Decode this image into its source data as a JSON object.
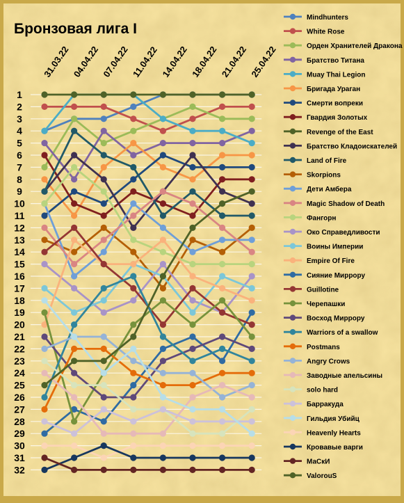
{
  "chart_data": {
    "type": "line",
    "title": "Бронзовая лига I",
    "categories": [
      "31.03.22",
      "04.04.22",
      "07.04.22",
      "11.04.22",
      "14.04.22",
      "18.04.22",
      "21.04.22",
      "25.04.22"
    ],
    "y_ticks": [
      1,
      2,
      3,
      4,
      5,
      6,
      7,
      8,
      9,
      10,
      11,
      12,
      13,
      14,
      15,
      16,
      17,
      18,
      19,
      20,
      21,
      22,
      23,
      24,
      25,
      26,
      27,
      28,
      29,
      30,
      31,
      32
    ],
    "y_axis": "rank, 1 at top",
    "ylim": [
      1,
      32
    ],
    "grid": true,
    "legend_position": "right",
    "series": [
      {
        "name": "Mindhunters",
        "color": "#4f81bd",
        "values": [
          4,
          3,
          3,
          2,
          1,
          1,
          1,
          1
        ]
      },
      {
        "name": "White Rose",
        "color": "#c0504d",
        "values": [
          2,
          2,
          2,
          3,
          4,
          3,
          2,
          2
        ]
      },
      {
        "name": "Орден Хранителей Дракона",
        "color": "#9bbb59",
        "values": [
          7,
          3,
          5,
          4,
          3,
          2,
          3,
          3
        ]
      },
      {
        "name": "Братство Титана",
        "color": "#8064a2",
        "values": [
          5,
          8,
          4,
          6,
          5,
          5,
          5,
          4
        ]
      },
      {
        "name": "Muay Thai Legion",
        "color": "#4bacc6",
        "values": [
          4,
          1,
          1,
          1,
          3,
          4,
          4,
          5
        ]
      },
      {
        "name": "Бригада Ураган",
        "color": "#f79646",
        "values": [
          8,
          11,
          7,
          5,
          7,
          8,
          6,
          6
        ]
      },
      {
        "name": "Смерти вопреки",
        "color": "#1f497d",
        "values": [
          11,
          9,
          10,
          8,
          6,
          7,
          7,
          7
        ]
      },
      {
        "name": "Гвардия Золотых",
        "color": "#7f1f1f",
        "values": [
          6,
          10,
          11,
          9,
          10,
          11,
          8,
          8
        ]
      },
      {
        "name": "Revenge of the East",
        "color": "#4f6228",
        "values": [
          1,
          1,
          1,
          1,
          1,
          1,
          1,
          1
        ]
      },
      {
        "name": "Братство Кладоискателей",
        "color": "#3f3151",
        "values": [
          9,
          6,
          8,
          12,
          9,
          6,
          9,
          10
        ]
      },
      {
        "name": "Land of Fire",
        "color": "#215968",
        "values": [
          9,
          4,
          6,
          7,
          11,
          9,
          11,
          11
        ]
      },
      {
        "name": "Skorpions",
        "color": "#b45f06",
        "values": [
          13,
          14,
          12,
          14,
          17,
          13,
          14,
          12
        ]
      },
      {
        "name": "Дети Амбера",
        "color": "#6f9fd8",
        "values": [
          10,
          16,
          14,
          10,
          12,
          14,
          13,
          13
        ]
      },
      {
        "name": "Magic Shadow of Death",
        "color": "#d98583",
        "values": [
          12,
          15,
          13,
          11,
          9,
          10,
          12,
          14
        ]
      },
      {
        "name": "Фангорн",
        "color": "#b8d47e",
        "values": [
          10,
          7,
          9,
          13,
          14,
          15,
          15,
          15
        ]
      },
      {
        "name": "Око Справедливости",
        "color": "#a893c8",
        "values": [
          15,
          17,
          19,
          18,
          15,
          18,
          19,
          16
        ]
      },
      {
        "name": "Воины Империи",
        "color": "#7cc7d9",
        "values": [
          17,
          19,
          18,
          15,
          16,
          19,
          16,
          17
        ]
      },
      {
        "name": "Empire Of Fire",
        "color": "#fab27c",
        "values": [
          20,
          13,
          15,
          15,
          13,
          16,
          17,
          18
        ]
      },
      {
        "name": "Сияние Миррору",
        "color": "#2f6ba3",
        "values": [
          29,
          27,
          28,
          25,
          22,
          21,
          23,
          19
        ]
      },
      {
        "name": "Guillotine",
        "color": "#943634",
        "values": [
          14,
          12,
          15,
          17,
          20,
          17,
          19,
          20
        ]
      },
      {
        "name": "Черепашки",
        "color": "#76923c",
        "values": [
          19,
          28,
          24,
          20,
          18,
          20,
          18,
          21
        ]
      },
      {
        "name": "Восход Миррору",
        "color": "#5f497a",
        "values": [
          21,
          24,
          26,
          26,
          23,
          22,
          21,
          22
        ]
      },
      {
        "name": "Warriors of a swallow",
        "color": "#31859c",
        "values": [
          26,
          20,
          17,
          16,
          21,
          23,
          22,
          23
        ]
      },
      {
        "name": "Postmans",
        "color": "#e46c0a",
        "values": [
          27,
          22,
          22,
          24,
          25,
          25,
          24,
          24
        ]
      },
      {
        "name": "Angry Crows",
        "color": "#95b3d7",
        "values": [
          22,
          21,
          21,
          23,
          24,
          24,
          26,
          25
        ]
      },
      {
        "name": "Заводные апельсины",
        "color": "#e6b9b8",
        "values": [
          24,
          26,
          29,
          29,
          29,
          26,
          25,
          26
        ]
      },
      {
        "name": "solo hard",
        "color": "#d7e4bd",
        "values": [
          23,
          25,
          25,
          27,
          27,
          29,
          29,
          27
        ]
      },
      {
        "name": "Барракуда",
        "color": "#ccc1da",
        "values": [
          28,
          29,
          27,
          28,
          27,
          28,
          28,
          28
        ]
      },
      {
        "name": "Гильдия Убийц",
        "color": "#b7dee8",
        "values": [
          18,
          21,
          24,
          22,
          26,
          27,
          27,
          29
        ]
      },
      {
        "name": "Heavenly Hearts",
        "color": "#fcd5b5",
        "values": [
          30,
          30,
          31,
          30,
          30,
          30,
          30,
          30
        ]
      },
      {
        "name": "Кровавые варги",
        "color": "#17375e",
        "values": [
          32,
          31,
          30,
          31,
          31,
          31,
          31,
          31
        ]
      },
      {
        "name": "МаСкИ",
        "color": "#632523",
        "values": [
          31,
          32,
          32,
          32,
          32,
          32,
          32,
          32
        ]
      },
      {
        "name": "ValorouS",
        "color": "#4f6228",
        "values": [
          25,
          23,
          23,
          21,
          16,
          12,
          10,
          9
        ]
      }
    ]
  }
}
